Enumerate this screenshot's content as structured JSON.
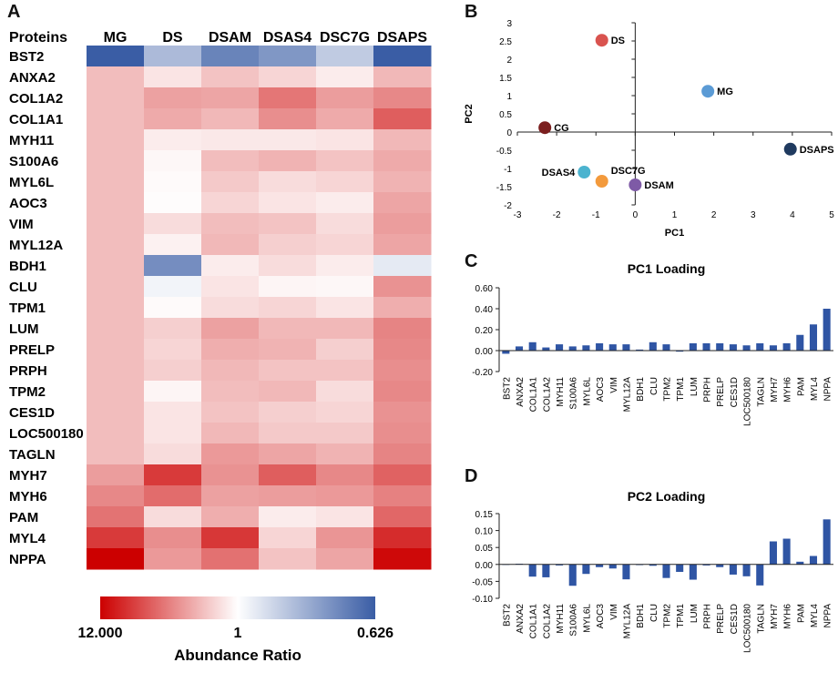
{
  "panels": {
    "a": "A",
    "b": "B",
    "c": "C",
    "d": "D"
  },
  "chart_data": [
    {
      "type": "heatmap",
      "row_header": "Proteins",
      "columns": [
        "MG",
        "DS",
        "DSAM",
        "DSAS4",
        "DSC7G",
        "DSAPS"
      ],
      "rows": [
        "BST2",
        "ANXA2",
        "COL1A2",
        "COL1A1",
        "MYH11",
        "S100A6",
        "MYL6L",
        "AOC3",
        "VIM",
        "MYL12A",
        "BDH1",
        "CLU",
        "TPM1",
        "LUM",
        "PRELP",
        "PRPH",
        "TPM2",
        "CES1D",
        "LOC500180",
        "TAGLN",
        "MYH7",
        "MYH6",
        "PAM",
        "MYL4",
        "NPPA"
      ],
      "values": [
        [
          0.626,
          0.82,
          0.7,
          0.74,
          0.86,
          0.626
        ],
        [
          1.9,
          1.3,
          1.8,
          1.5,
          1.2,
          2.0
        ],
        [
          1.9,
          2.5,
          2.4,
          3.8,
          2.6,
          3.2
        ],
        [
          1.9,
          2.3,
          2.0,
          3.0,
          2.3,
          4.8
        ],
        [
          1.9,
          1.2,
          1.25,
          1.25,
          1.3,
          2.0
        ],
        [
          1.9,
          1.08,
          1.9,
          2.1,
          1.8,
          2.3
        ],
        [
          1.9,
          1.05,
          1.7,
          1.4,
          1.5,
          2.1
        ],
        [
          1.9,
          1.03,
          1.5,
          1.3,
          1.2,
          2.4
        ],
        [
          1.9,
          1.4,
          1.9,
          1.8,
          1.4,
          2.6
        ],
        [
          1.9,
          1.15,
          2.0,
          1.6,
          1.5,
          2.4
        ],
        [
          1.9,
          0.72,
          1.2,
          1.4,
          1.2,
          0.94
        ],
        [
          1.9,
          0.97,
          1.3,
          1.1,
          1.08,
          2.9
        ],
        [
          1.9,
          1.05,
          1.4,
          1.5,
          1.3,
          2.2
        ],
        [
          1.9,
          1.6,
          2.5,
          2.0,
          2.0,
          3.3
        ],
        [
          1.9,
          1.5,
          2.2,
          2.1,
          1.6,
          3.2
        ],
        [
          1.9,
          1.6,
          2.0,
          1.8,
          1.8,
          3.0
        ],
        [
          1.9,
          1.1,
          1.9,
          2.0,
          1.4,
          3.2
        ],
        [
          1.9,
          1.3,
          1.8,
          1.6,
          1.5,
          2.9
        ],
        [
          1.9,
          1.3,
          2.0,
          1.7,
          1.7,
          3.0
        ],
        [
          1.9,
          1.4,
          2.7,
          2.4,
          2.1,
          3.3
        ],
        [
          2.6,
          6.8,
          2.9,
          4.8,
          3.2,
          4.6
        ],
        [
          3.2,
          4.2,
          2.5,
          2.6,
          2.7,
          3.4
        ],
        [
          3.9,
          1.4,
          2.2,
          1.2,
          1.3,
          4.4
        ],
        [
          6.8,
          3.0,
          7.0,
          1.5,
          2.8,
          7.8
        ],
        [
          12.0,
          2.7,
          4.0,
          1.8,
          2.4,
          11.0
        ]
      ],
      "colorbar": {
        "min_label": "12.000",
        "mid_label": "1",
        "max_label": "0.626",
        "title": "Abundance Ratio",
        "low_color": "#CC0000",
        "mid_color": "#FFFFFF",
        "high_color": "#3A5DA5"
      }
    },
    {
      "type": "scatter",
      "xlabel": "PC1",
      "ylabel": "PC2",
      "xlim": [
        -3,
        5
      ],
      "ylim": [
        -2,
        3
      ],
      "xticks": [
        "-3",
        "-2",
        "-1",
        "0",
        "1",
        "2",
        "3",
        "4",
        "5"
      ],
      "yticks": [
        "-2",
        "-1.5",
        "-1",
        "-0.5",
        "0",
        "0.5",
        "1",
        "1.5",
        "2",
        "2.5",
        "3"
      ],
      "points": [
        {
          "label": "DS",
          "x": -0.85,
          "y": 2.52,
          "color": "#D9534F"
        },
        {
          "label": "MG",
          "x": 1.85,
          "y": 1.12,
          "color": "#5B9BD5"
        },
        {
          "label": "CG",
          "x": -2.3,
          "y": 0.12,
          "color": "#7B1F1F"
        },
        {
          "label": "DSAPS",
          "x": 3.95,
          "y": -0.47,
          "color": "#1F3A5F"
        },
        {
          "label": "DSAS4",
          "x": -1.3,
          "y": -1.1,
          "color": "#4BB3CF"
        },
        {
          "label": "DSC7G",
          "x": -0.85,
          "y": -1.35,
          "color": "#F39A3C"
        },
        {
          "label": "DSAM",
          "x": 0.0,
          "y": -1.45,
          "color": "#7E5AA6"
        }
      ]
    },
    {
      "type": "bar",
      "title": "PC1 Loading",
      "ylim": [
        -0.2,
        0.6
      ],
      "yticks": [
        "-0.20",
        "0.00",
        "0.20",
        "0.40",
        "0.60"
      ],
      "categories": [
        "BST2",
        "ANXA2",
        "COL1A1",
        "COL1A2",
        "MYH11",
        "S100A6",
        "MYL6L",
        "AOC3",
        "VIM",
        "MYL12A",
        "BDH1",
        "CLU",
        "TPM2",
        "TPM1",
        "LUM",
        "PRPH",
        "PRELP",
        "CES1D",
        "LOC500180",
        "TAGLN",
        "MYH7",
        "MYH6",
        "PAM",
        "MYL4",
        "NPPA"
      ],
      "values": [
        -0.03,
        0.04,
        0.08,
        0.03,
        0.06,
        0.04,
        0.05,
        0.07,
        0.06,
        0.06,
        0.01,
        0.08,
        0.06,
        -0.01,
        0.07,
        0.07,
        0.07,
        0.06,
        0.05,
        0.07,
        0.05,
        0.07,
        0.15,
        0.25,
        0.4
      ],
      "color": "#2F55A4"
    },
    {
      "type": "bar",
      "title": "PC2 Loading",
      "ylim": [
        -0.1,
        0.15
      ],
      "yticks": [
        "-0.10",
        "-0.05",
        "0.00",
        "0.05",
        "0.10",
        "0.15"
      ],
      "categories": [
        "BST2",
        "ANXA2",
        "COL1A1",
        "COL1A2",
        "MYH11",
        "S100A6",
        "MYL6L",
        "AOC3",
        "VIM",
        "MYL12A",
        "BDH1",
        "CLU",
        "TPM2",
        "TPM1",
        "LUM",
        "PRPH",
        "PRELP",
        "CES1D",
        "LOC500180",
        "TAGLN",
        "MYH7",
        "MYH6",
        "PAM",
        "MYL4",
        "NPPA"
      ],
      "values": [
        0.0,
        0.002,
        -0.036,
        -0.038,
        -0.003,
        -0.063,
        -0.028,
        -0.008,
        -0.012,
        -0.044,
        -0.002,
        -0.004,
        -0.04,
        -0.022,
        -0.045,
        -0.003,
        -0.008,
        -0.03,
        -0.035,
        -0.062,
        0.068,
        0.076,
        0.008,
        0.025,
        0.133
      ],
      "color": "#2F55A4"
    }
  ]
}
